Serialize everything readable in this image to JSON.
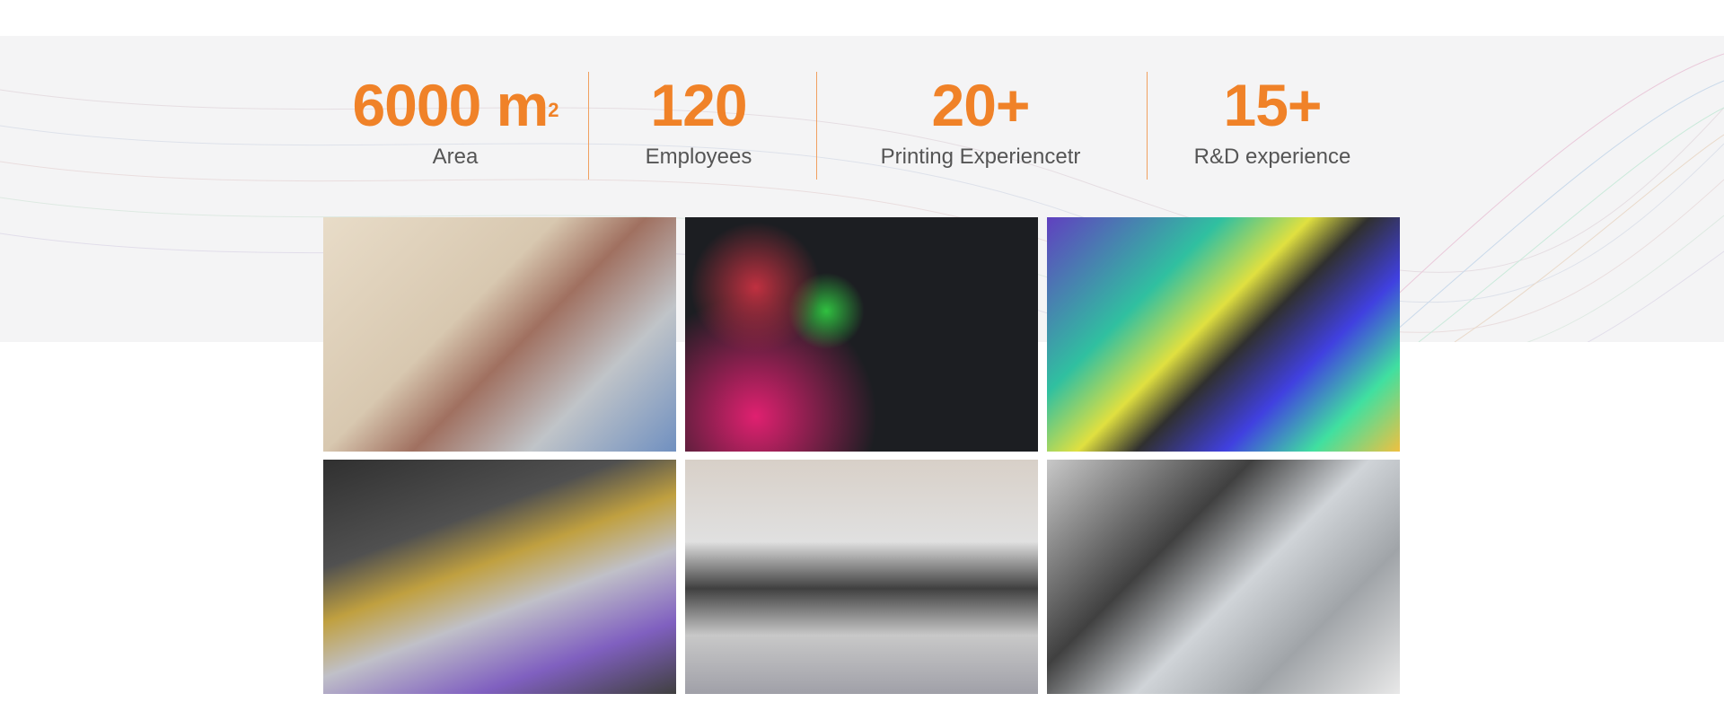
{
  "stats": [
    {
      "value": "6000",
      "unit": "m",
      "sup": "2",
      "label": "Area"
    },
    {
      "value": "120",
      "label": "Employees"
    },
    {
      "value": "20+",
      "label": "Printing Experiencetr"
    },
    {
      "value": "15+",
      "label": "R&D experience"
    }
  ]
}
